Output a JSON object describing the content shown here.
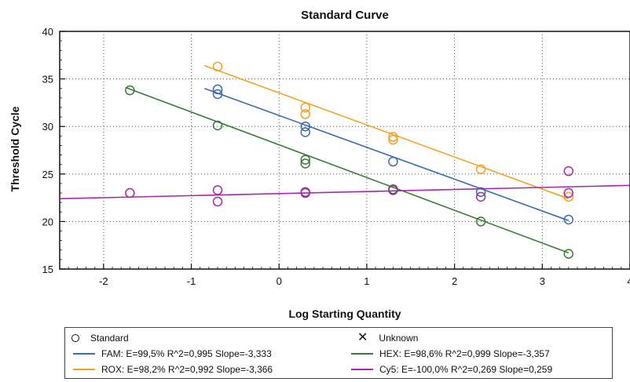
{
  "chart_data": {
    "type": "scatter",
    "title": "Standard Curve",
    "xlabel": "Log Starting Quantity",
    "ylabel": "Threshold Cycle",
    "xlim": [
      -2.5,
      4
    ],
    "ylim": [
      15,
      40
    ],
    "xticks": [
      -2,
      -1,
      0,
      1,
      2,
      3,
      4
    ],
    "yticks": [
      15,
      20,
      25,
      30,
      35,
      40
    ],
    "grid": true,
    "series": [
      {
        "name": "FAM",
        "color": "#3a6db0",
        "legend_text": "FAM: E=99,5% R^2=0,995 Slope=-3,333",
        "points": [
          [
            -0.7,
            33.9
          ],
          [
            -0.7,
            33.4
          ],
          [
            0.3,
            30.0
          ],
          [
            0.3,
            29.4
          ],
          [
            1.3,
            26.3
          ],
          [
            2.3,
            23.1
          ],
          [
            3.3,
            20.2
          ]
        ],
        "line": [
          [
            -0.85,
            34.0
          ],
          [
            3.3,
            20.1
          ]
        ]
      },
      {
        "name": "ROX",
        "color": "#f5a020",
        "legend_text": "ROX: E=98,2% R^2=0,992 Slope=-3,366",
        "points": [
          [
            -0.7,
            36.3
          ],
          [
            0.3,
            32.0
          ],
          [
            0.3,
            31.3
          ],
          [
            1.3,
            28.9
          ],
          [
            1.3,
            28.6
          ],
          [
            2.3,
            25.5
          ],
          [
            3.3,
            22.6
          ]
        ],
        "line": [
          [
            -0.85,
            36.4
          ],
          [
            3.3,
            22.4
          ]
        ]
      },
      {
        "name": "HEX",
        "color": "#3a7a35",
        "legend_text": "HEX: E=98,6% R^2=0,999 Slope=-3,357",
        "points": [
          [
            -1.7,
            33.8
          ],
          [
            -0.7,
            30.1
          ],
          [
            0.3,
            26.5
          ],
          [
            0.3,
            26.1
          ],
          [
            1.3,
            23.4
          ],
          [
            2.3,
            20.0
          ],
          [
            3.3,
            16.6
          ]
        ],
        "line": [
          [
            -1.75,
            34.1
          ],
          [
            3.3,
            16.7
          ]
        ]
      },
      {
        "name": "Cy5",
        "color": "#a22aa6",
        "legend_text": "Cy5: E=-100,0% R^2=0,269 Slope=0,259",
        "points": [
          [
            -1.7,
            23.0
          ],
          [
            -0.7,
            23.3
          ],
          [
            -0.7,
            22.1
          ],
          [
            0.3,
            23.1
          ],
          [
            0.3,
            23.0
          ],
          [
            1.3,
            23.3
          ],
          [
            2.3,
            22.6
          ],
          [
            3.3,
            25.3
          ],
          [
            3.3,
            23.0
          ]
        ],
        "line": [
          [
            -2.5,
            22.4
          ],
          [
            4.0,
            23.8
          ]
        ]
      }
    ]
  },
  "legend": {
    "standard_label": "Standard",
    "unknown_label": "Unknown"
  }
}
